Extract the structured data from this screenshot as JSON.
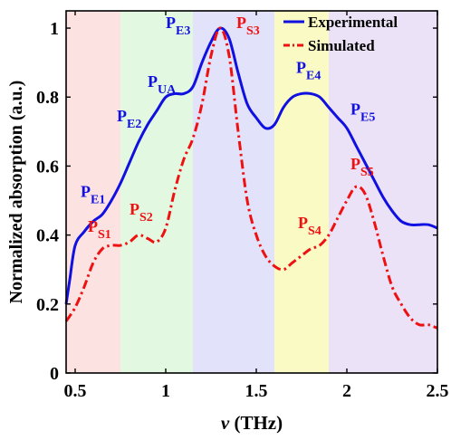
{
  "chart_data": {
    "type": "line",
    "xlabel_symbol": "ν",
    "xlabel_unit": " (THz)",
    "ylabel": "Normalized absorption (a.u.)",
    "xlim": [
      0.45,
      2.5
    ],
    "ylim": [
      0,
      1.05
    ],
    "x_ticks": [
      {
        "value": 0.5,
        "label": "0.5"
      },
      {
        "value": 1.0,
        "label": "1"
      },
      {
        "value": 1.5,
        "label": "1.5"
      },
      {
        "value": 2.0,
        "label": "2"
      },
      {
        "value": 2.5,
        "label": "2.5"
      }
    ],
    "y_ticks": [
      {
        "value": 0,
        "label": "0"
      },
      {
        "value": 0.2,
        "label": "0.2"
      },
      {
        "value": 0.4,
        "label": "0.4"
      },
      {
        "value": 0.6,
        "label": "0.6"
      },
      {
        "value": 0.8,
        "label": "0.8"
      },
      {
        "value": 1.0,
        "label": "1"
      }
    ],
    "legend_position": "top-right",
    "bands": [
      {
        "x0": 0.45,
        "x1": 0.75,
        "color": "#fde2e2"
      },
      {
        "x0": 0.75,
        "x1": 1.15,
        "color": "#e3f8e0"
      },
      {
        "x0": 1.15,
        "x1": 1.6,
        "color": "#e2e2fa"
      },
      {
        "x0": 1.6,
        "x1": 1.9,
        "color": "#fafac4"
      },
      {
        "x0": 1.9,
        "x1": 2.5,
        "color": "#ece2f8"
      }
    ],
    "series": [
      {
        "name": "Experimental",
        "color": "#1010e0",
        "style": "solid",
        "x": [
          0.45,
          0.47,
          0.5,
          0.55,
          0.6,
          0.65,
          0.7,
          0.75,
          0.8,
          0.85,
          0.9,
          0.95,
          1.0,
          1.05,
          1.1,
          1.15,
          1.2,
          1.25,
          1.3,
          1.35,
          1.4,
          1.45,
          1.5,
          1.55,
          1.6,
          1.65,
          1.7,
          1.75,
          1.8,
          1.85,
          1.9,
          1.95,
          2.0,
          2.05,
          2.1,
          2.15,
          2.2,
          2.25,
          2.3,
          2.35,
          2.4,
          2.45,
          2.5
        ],
        "y": [
          0.2,
          0.27,
          0.37,
          0.41,
          0.44,
          0.46,
          0.5,
          0.55,
          0.61,
          0.67,
          0.72,
          0.76,
          0.8,
          0.81,
          0.81,
          0.83,
          0.9,
          0.96,
          1.0,
          0.97,
          0.87,
          0.78,
          0.74,
          0.71,
          0.72,
          0.77,
          0.8,
          0.81,
          0.81,
          0.8,
          0.77,
          0.74,
          0.71,
          0.66,
          0.61,
          0.56,
          0.51,
          0.47,
          0.44,
          0.43,
          0.43,
          0.43,
          0.42
        ]
      },
      {
        "name": "Simulated",
        "color": "#ee1111",
        "style": "dashdot",
        "x": [
          0.45,
          0.5,
          0.55,
          0.6,
          0.65,
          0.7,
          0.75,
          0.8,
          0.85,
          0.9,
          0.95,
          1.0,
          1.05,
          1.1,
          1.15,
          1.2,
          1.25,
          1.3,
          1.35,
          1.4,
          1.45,
          1.5,
          1.55,
          1.6,
          1.65,
          1.7,
          1.75,
          1.8,
          1.85,
          1.9,
          1.95,
          2.0,
          2.05,
          2.1,
          2.15,
          2.2,
          2.25,
          2.3,
          2.35,
          2.4,
          2.45,
          2.5
        ],
        "y": [
          0.15,
          0.19,
          0.25,
          0.32,
          0.36,
          0.37,
          0.37,
          0.38,
          0.4,
          0.39,
          0.38,
          0.42,
          0.53,
          0.62,
          0.68,
          0.78,
          0.92,
          1.0,
          0.92,
          0.7,
          0.5,
          0.4,
          0.34,
          0.31,
          0.3,
          0.32,
          0.34,
          0.36,
          0.37,
          0.4,
          0.45,
          0.5,
          0.54,
          0.52,
          0.44,
          0.34,
          0.25,
          0.2,
          0.16,
          0.14,
          0.14,
          0.13
        ]
      }
    ],
    "annotations": [
      {
        "main": "P",
        "sub": "E1",
        "x": 0.53,
        "y": 0.51,
        "color": "#1010e0"
      },
      {
        "main": "P",
        "sub": "E2",
        "x": 0.73,
        "y": 0.73,
        "color": "#1010e0"
      },
      {
        "main": "P",
        "sub": "UA",
        "x": 0.9,
        "y": 0.83,
        "color": "#1010e0"
      },
      {
        "main": "P",
        "sub": "E3",
        "x": 1.0,
        "y": 1.0,
        "color": "#1010e0"
      },
      {
        "main": "P",
        "sub": "S3",
        "x": 1.39,
        "y": 1.0,
        "color": "#ee1111"
      },
      {
        "main": "P",
        "sub": "E4",
        "x": 1.72,
        "y": 0.87,
        "color": "#1010e0"
      },
      {
        "main": "P",
        "sub": "E5",
        "x": 2.02,
        "y": 0.75,
        "color": "#1010e0"
      },
      {
        "main": "P",
        "sub": "S1",
        "x": 0.57,
        "y": 0.41,
        "color": "#ee1111"
      },
      {
        "main": "P",
        "sub": "S2",
        "x": 0.8,
        "y": 0.46,
        "color": "#ee1111"
      },
      {
        "main": "P",
        "sub": "S4",
        "x": 1.73,
        "y": 0.42,
        "color": "#ee1111"
      },
      {
        "main": "P",
        "sub": "S5",
        "x": 2.02,
        "y": 0.59,
        "color": "#ee1111"
      }
    ]
  }
}
